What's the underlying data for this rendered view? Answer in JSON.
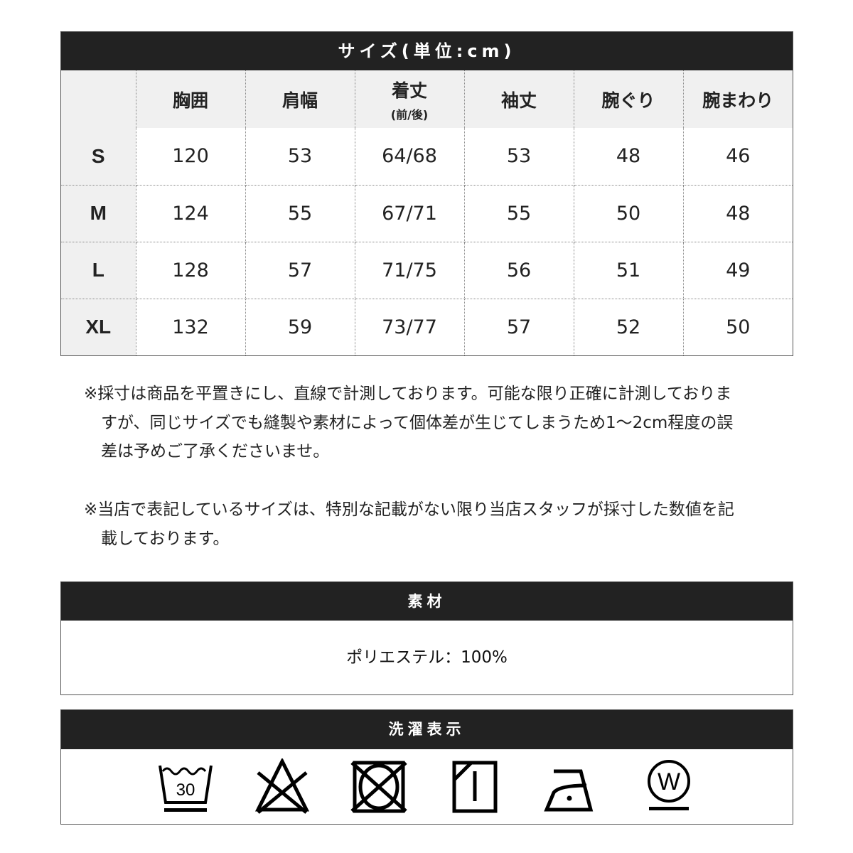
{
  "size_table": {
    "title": "サイズ(単位:cm)",
    "headers": [
      "胸囲",
      "肩幅",
      "着丈",
      "袖丈",
      "腕ぐり",
      "腕まわり"
    ],
    "header_sub": "(前/後)",
    "rows": [
      {
        "size": "S",
        "values": [
          "120",
          "53",
          "64/68",
          "53",
          "48",
          "46"
        ]
      },
      {
        "size": "M",
        "values": [
          "124",
          "55",
          "67/71",
          "55",
          "50",
          "48"
        ]
      },
      {
        "size": "L",
        "values": [
          "128",
          "57",
          "71/75",
          "56",
          "51",
          "49"
        ]
      },
      {
        "size": "XL",
        "values": [
          "132",
          "59",
          "73/77",
          "57",
          "52",
          "50"
        ]
      }
    ]
  },
  "notes": [
    "※採寸は商品を平置きにし、直線で計測しております。可能な限り正確に計測しておりますが、同じサイズでも縫製や素材によって個体差が生じてしまうため1〜2cm程度の誤差は予めご了承くださいませ。",
    "※当店で表記しているサイズは、特別な記載がない限り当店スタッフが採寸した数値を記載しております。"
  ],
  "material": {
    "title": "素材",
    "value": "ポリエステル：100%"
  },
  "care": {
    "title": "洗濯表示",
    "icons": [
      "wash-30-gentle-icon",
      "no-bleach-icon",
      "no-tumble-dry-icon",
      "line-dry-shade-icon",
      "iron-low-icon",
      "wet-clean-gentle-icon"
    ],
    "wash_temp": "30",
    "wet_clean_letter": "W"
  }
}
